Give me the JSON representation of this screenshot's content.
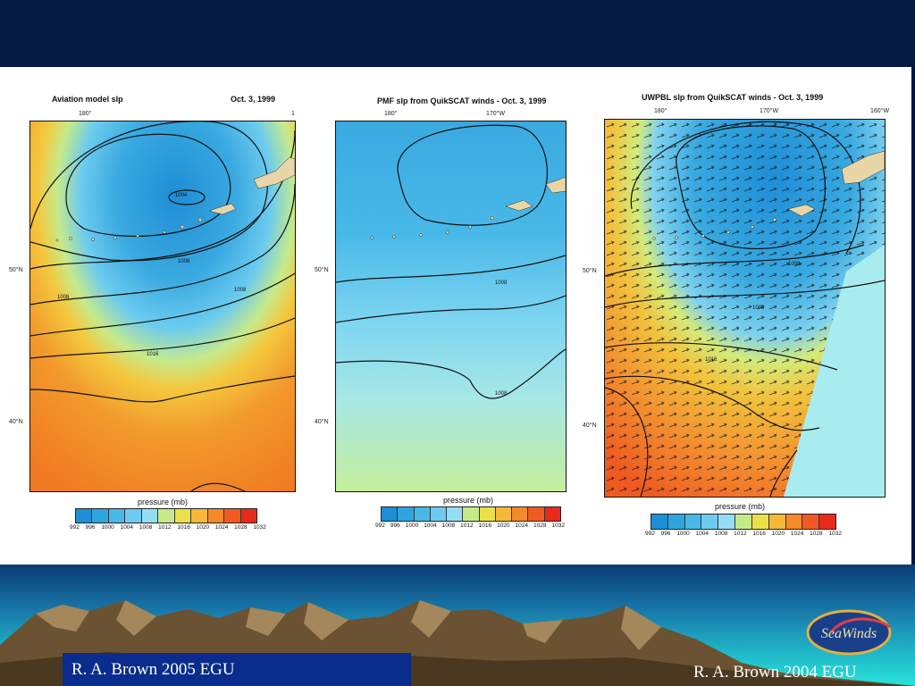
{
  "panels": [
    {
      "title": "Aviation model slp",
      "date": "Oct. 3, 1999",
      "top_ticks": [
        "180°",
        "1"
      ],
      "lat_ticks": [
        "50°N",
        "40°N"
      ],
      "contour_labels": [
        "1004",
        "1008",
        "1008",
        "1008",
        "1016"
      ],
      "colorbar_label": "pressure (mb)"
    },
    {
      "title": "PMF slp from QuikSCAT winds - Oct. 3, 1999",
      "date": "",
      "top_ticks": [
        "180°",
        "170°W"
      ],
      "lat_ticks": [
        "50°N",
        "40°N"
      ],
      "contour_labels": [
        "1008",
        "1008"
      ],
      "colorbar_label": "pressure (mb)"
    },
    {
      "title": "UWPBL slp from QuikSCAT winds - Oct. 3, 1999",
      "date": "",
      "top_ticks": [
        "180°",
        "170°W",
        "160°W"
      ],
      "lat_ticks": [
        "50°N",
        "40°N"
      ],
      "contour_labels": [
        "1008",
        "1008",
        "1016"
      ],
      "colorbar_label": "pressure (mb)"
    }
  ],
  "colorbar": {
    "ticks": [
      "992",
      "996",
      "1000",
      "1004",
      "1008",
      "1012",
      "1016",
      "1020",
      "1024",
      "1028",
      "1032"
    ],
    "colors": [
      "#1c8fd8",
      "#2fa5e0",
      "#48b8e8",
      "#6ccbef",
      "#94def3",
      "#c6ea8a",
      "#eae04a",
      "#f5b83a",
      "#f48a2a",
      "#f05a22",
      "#e82a1c"
    ]
  },
  "credits": {
    "left": "R. A. Brown 2005 EGU",
    "right": "R. A. Brown 2004 EGU"
  },
  "logo": {
    "text": "SeaWinds"
  }
}
